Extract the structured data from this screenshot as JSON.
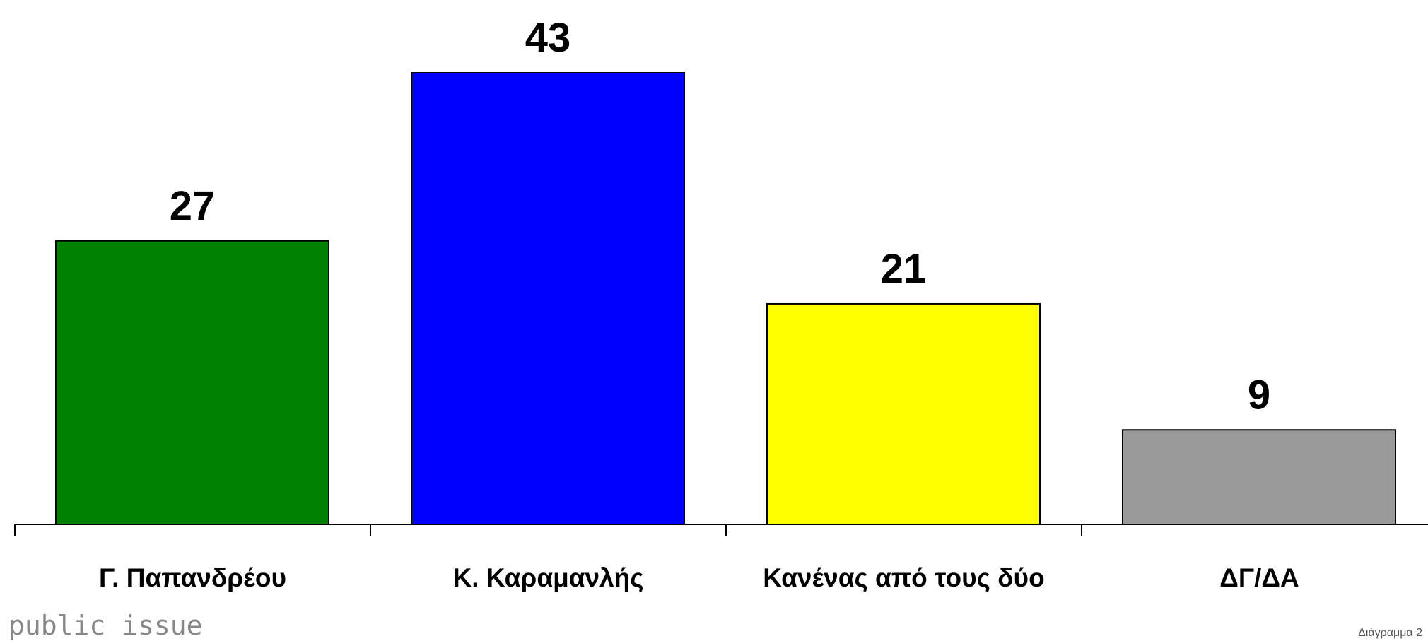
{
  "chart_data": {
    "type": "bar",
    "categories": [
      "Γ. Παπανδρέου",
      "Κ. Καραμανλής",
      "Κανένας από τους δύο",
      "ΔΓ/ΔΑ"
    ],
    "values": [
      27,
      43,
      21,
      9
    ],
    "colors": [
      "#008000",
      "#0000ff",
      "#ffff00",
      "#999999"
    ],
    "footer": "public issue",
    "note": "Διάγραμμα 2"
  }
}
